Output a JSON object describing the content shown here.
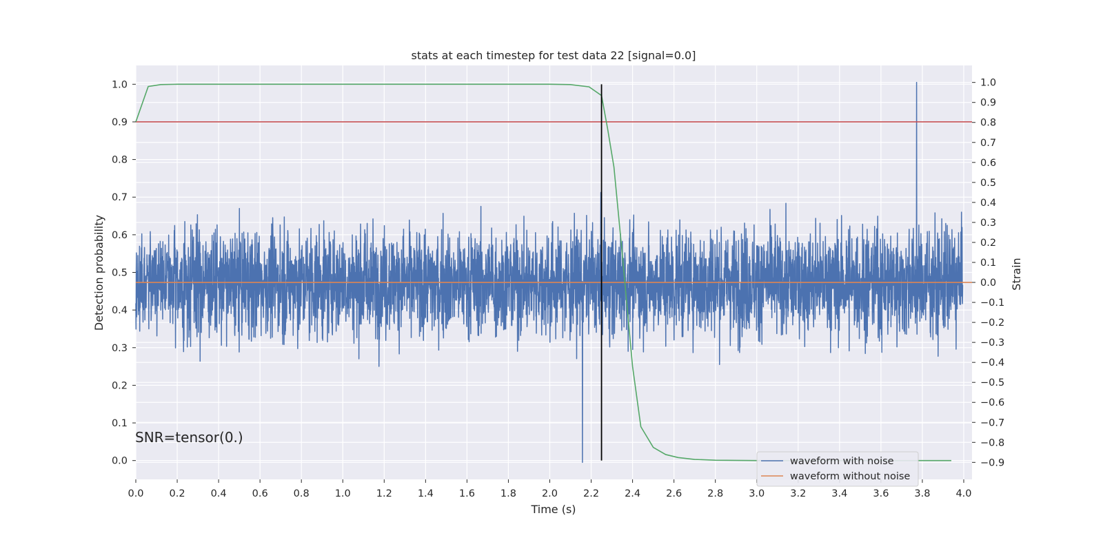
{
  "chart_data": {
    "type": "line",
    "title": "stats at each timestep for test data 22 [signal=0.0]",
    "xlabel": "Time (s)",
    "ylabel": "Detection probability",
    "y2label": "Strain",
    "xlim": [
      0.0,
      4.04
    ],
    "ylim": [
      -0.05,
      1.05
    ],
    "y2lim": [
      -0.985,
      1.085
    ],
    "grid": true,
    "x_ticks": [
      "0.0",
      "0.2",
      "0.4",
      "0.6",
      "0.8",
      "1.0",
      "1.2",
      "1.4",
      "1.6",
      "1.8",
      "2.0",
      "2.2",
      "2.4",
      "2.6",
      "2.8",
      "3.0",
      "3.2",
      "3.4",
      "3.6",
      "3.8",
      "4.0"
    ],
    "y_ticks": [
      "0.0",
      "0.1",
      "0.2",
      "0.3",
      "0.4",
      "0.5",
      "0.6",
      "0.7",
      "0.8",
      "0.9",
      "1.0"
    ],
    "y2_ticks": [
      "−0.9",
      "−0.8",
      "−0.7",
      "−0.6",
      "−0.5",
      "−0.4",
      "−0.3",
      "−0.2",
      "−0.1",
      "0.0",
      "0.1",
      "0.2",
      "0.3",
      "0.4",
      "0.5",
      "0.6",
      "0.7",
      "0.8",
      "0.9",
      "1.0"
    ],
    "detection_probability": {
      "color": "#55a868",
      "x": [
        0.0,
        0.06,
        0.12,
        0.2,
        0.5,
        1.0,
        1.5,
        2.0,
        2.1,
        2.19,
        2.25,
        2.28,
        2.31,
        2.35,
        2.4,
        2.44,
        2.5,
        2.56,
        2.62,
        2.7,
        2.8,
        3.0,
        3.5,
        3.94
      ],
      "y": [
        0.9,
        0.994,
        0.999,
        1.0,
        1.0,
        1.0,
        1.0,
        1.0,
        0.999,
        0.993,
        0.97,
        0.88,
        0.78,
        0.55,
        0.25,
        0.09,
        0.035,
        0.016,
        0.008,
        0.003,
        0.001,
        0.0,
        0.0,
        0.0
      ]
    },
    "threshold": {
      "color": "#c44e52",
      "y": 0.9
    },
    "marker_time": {
      "color": "#000000",
      "x": 2.25,
      "y_range": [
        0.0,
        1.0
      ]
    },
    "series": [
      {
        "name": "waveform with noise",
        "color": "#4c72b0",
        "axis": "right",
        "n_points": 4000,
        "mean": 0.0,
        "spread": 0.3,
        "peak": 1.0,
        "trough": -0.9
      },
      {
        "name": "waveform without noise",
        "color": "#dd8452",
        "axis": "right",
        "value": 0.0
      }
    ],
    "annotation": "SNR=tensor(0.)",
    "legend_location": "lower right"
  }
}
